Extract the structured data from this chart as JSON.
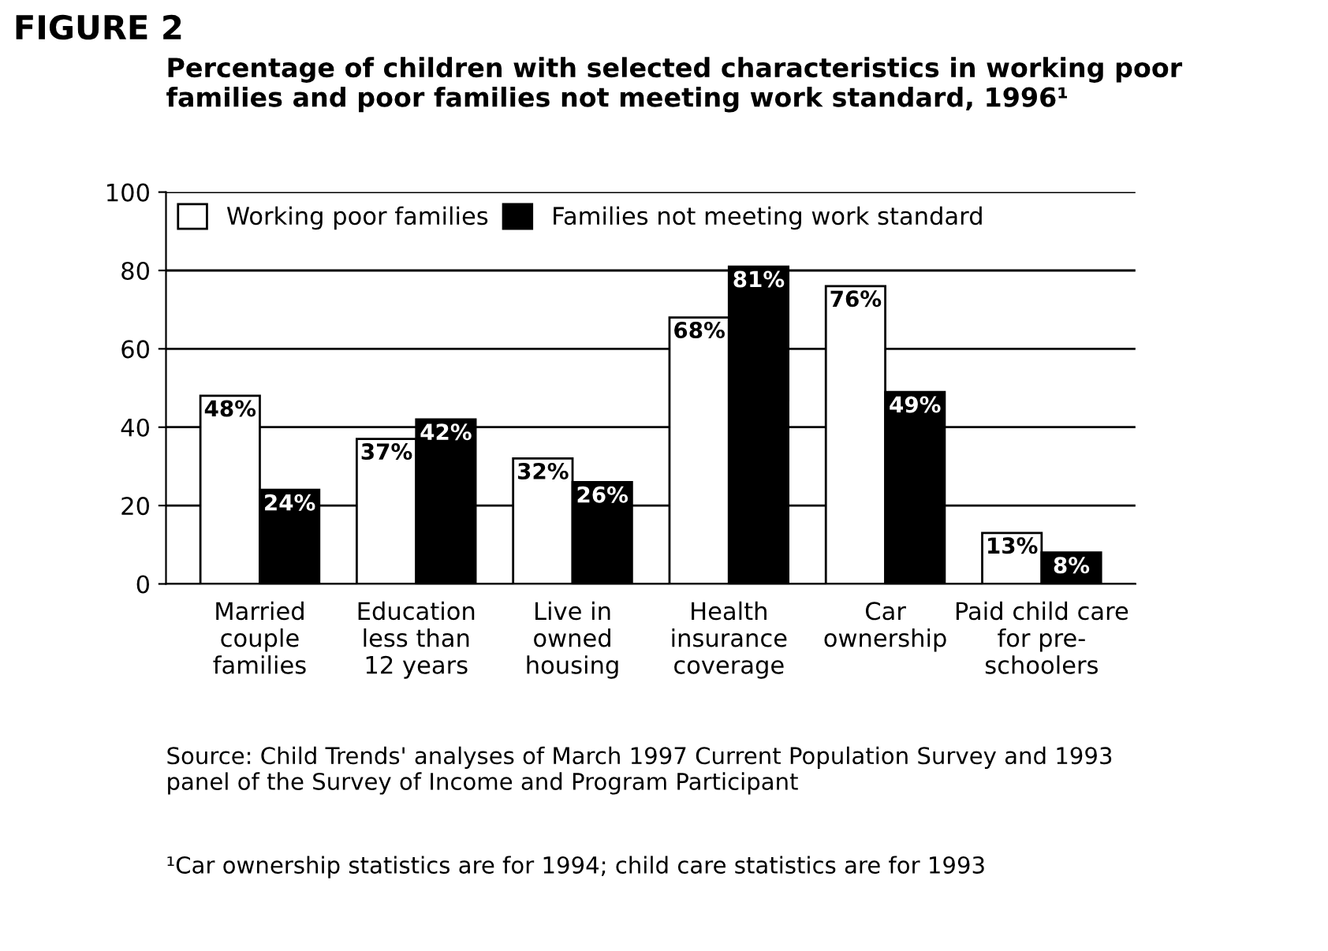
{
  "chart_data": {
    "type": "bar",
    "title": "Percentage of children with selected characteristics in working poor\nfamilies and poor families not meeting work standard, 1996¹",
    "categories": [
      "Married\ncouple\nfamilies",
      "Education\nless than\n12 years",
      "Live in\nowned\nhousing",
      "Health\ninsurance\ncoverage",
      "Car\nownership",
      "Paid child care\nfor pre-\nschoolers"
    ],
    "series": [
      {
        "name": "Working poor families",
        "color": "#ffffff",
        "values": [
          48,
          37,
          32,
          68,
          76,
          13
        ],
        "value_labels": [
          "48%",
          "37%",
          "32%",
          "68%",
          "76%",
          "13%"
        ]
      },
      {
        "name": "Families not meeting work standard",
        "color": "#000000",
        "values": [
          24,
          42,
          26,
          81,
          49,
          8
        ],
        "value_labels": [
          "24%",
          "42%",
          "26%",
          "81%",
          "49%",
          "8%"
        ]
      }
    ],
    "ylim": [
      0,
      100
    ],
    "yticks": [
      0,
      20,
      40,
      60,
      80,
      100
    ],
    "grid": "y",
    "legend": "top left",
    "annotations": [
      "FIGURE 2",
      "Source: Child Trends' analyses of March 1997 Current Population Survey and 1993\npanel of the Survey of Income and Program Participant",
      "¹Car ownership statistics are for 1994; child care statistics are for 1993"
    ]
  }
}
